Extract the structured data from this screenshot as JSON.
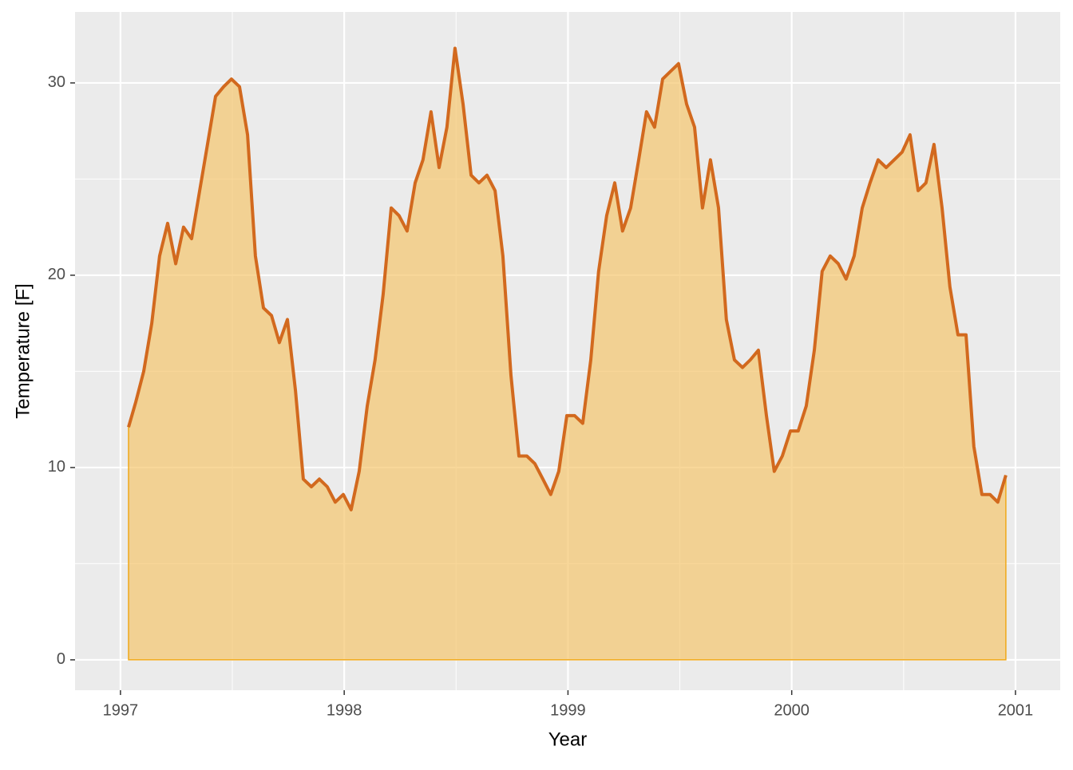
{
  "chart_data": {
    "type": "area",
    "x_label": "Year",
    "y_label": "Temperature [F]",
    "x": [
      1997.036,
      1997.068,
      1997.104,
      1997.14,
      1997.175,
      1997.211,
      1997.247,
      1997.282,
      1997.318,
      1997.354,
      1997.389,
      1997.425,
      1997.461,
      1997.496,
      1997.532,
      1997.568,
      1997.603,
      1997.639,
      1997.675,
      1997.71,
      1997.746,
      1997.782,
      1997.817,
      1997.853,
      1997.889,
      1997.924,
      1997.96,
      1997.996,
      1998.031,
      1998.067,
      1998.103,
      1998.138,
      1998.174,
      1998.21,
      1998.245,
      1998.281,
      1998.317,
      1998.352,
      1998.388,
      1998.424,
      1998.459,
      1998.495,
      1998.531,
      1998.567,
      1998.602,
      1998.638,
      1998.674,
      1998.709,
      1998.745,
      1998.781,
      1998.816,
      1998.852,
      1998.888,
      1998.923,
      1998.959,
      1998.995,
      1999.03,
      1999.066,
      1999.102,
      1999.137,
      1999.173,
      1999.209,
      1999.244,
      1999.28,
      1999.316,
      1999.351,
      1999.387,
      1999.423,
      1999.458,
      1999.494,
      1999.53,
      1999.566,
      1999.601,
      1999.637,
      1999.673,
      1999.708,
      1999.744,
      1999.78,
      1999.815,
      1999.851,
      1999.887,
      1999.922,
      1999.958,
      1999.994,
      2000.029,
      2000.065,
      2000.101,
      2000.136,
      2000.172,
      2000.208,
      2000.243,
      2000.279,
      2000.315,
      2000.35,
      2000.386,
      2000.422,
      2000.458,
      2000.493,
      2000.529,
      2000.565,
      2000.6,
      2000.636,
      2000.672,
      2000.707,
      2000.743,
      2000.779,
      2000.814,
      2000.85,
      2000.886,
      2000.921,
      2000.957
    ],
    "values": [
      12.1,
      13.4,
      15.0,
      17.5,
      21.0,
      22.7,
      20.6,
      22.5,
      21.9,
      24.4,
      26.8,
      29.3,
      29.8,
      30.2,
      29.8,
      27.3,
      21.0,
      18.3,
      17.9,
      16.5,
      17.7,
      14.0,
      9.4,
      9.0,
      9.4,
      9.0,
      8.2,
      8.6,
      7.8,
      9.8,
      13.2,
      15.6,
      19.0,
      23.5,
      23.1,
      22.3,
      24.8,
      26.0,
      28.5,
      25.6,
      27.7,
      31.8,
      28.9,
      25.2,
      24.8,
      25.2,
      24.4,
      21.0,
      14.8,
      10.6,
      10.6,
      10.2,
      9.4,
      8.6,
      9.8,
      12.7,
      12.7,
      12.3,
      15.6,
      20.2,
      23.1,
      24.8,
      22.3,
      23.5,
      26.0,
      28.5,
      27.7,
      30.2,
      30.6,
      31.0,
      28.9,
      27.7,
      23.5,
      26.0,
      23.5,
      17.7,
      15.6,
      15.2,
      15.6,
      16.1,
      12.7,
      9.8,
      10.6,
      11.9,
      11.9,
      13.2,
      16.1,
      20.2,
      21.0,
      20.6,
      19.8,
      21.0,
      23.5,
      24.8,
      26.0,
      25.6,
      26.0,
      26.4,
      27.3,
      24.4,
      24.8,
      26.8,
      23.5,
      19.4,
      16.9,
      16.9,
      11.1,
      8.6,
      8.6,
      8.2,
      9.6
    ],
    "line_color": "#d2691e",
    "fill_color": "#f5c66e",
    "fill_outline_color": "#f0a818",
    "xlim": [
      1996.797,
      2001.2
    ],
    "xticks": [
      1997,
      1998,
      1999,
      2000,
      2001
    ],
    "ylim": [
      -1.58,
      33.69
    ],
    "yticks": [
      0,
      10,
      20,
      30
    ],
    "grid": true
  }
}
